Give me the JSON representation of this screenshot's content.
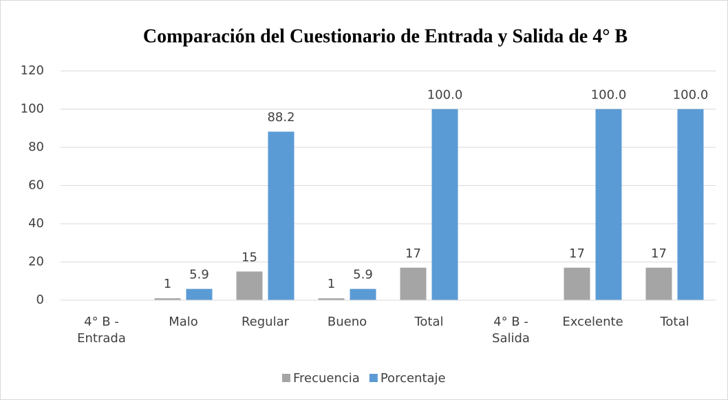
{
  "chart_data": {
    "type": "bar",
    "title": "Comparación del Cuestionario de Entrada y Salida de 4° B",
    "categories": [
      "4° B - Entrada",
      "Malo",
      "Regular",
      "Bueno",
      "Total",
      "4° B - Salida",
      "Excelente",
      "Total"
    ],
    "series": [
      {
        "name": "Frecuencia",
        "color": "#a5a5a5",
        "values": [
          null,
          1,
          15,
          1,
          17,
          null,
          17,
          17
        ]
      },
      {
        "name": "Porcentaje",
        "color": "#5b9bd5",
        "values": [
          null,
          5.9,
          88.2,
          5.9,
          100,
          null,
          100,
          100
        ],
        "value_labels": [
          null,
          "5.9",
          "88.2",
          "5.9",
          "100.0",
          null,
          "100.0",
          "100.0"
        ]
      }
    ],
    "ylim": [
      0,
      120
    ],
    "yticks": [
      0,
      20,
      40,
      60,
      80,
      100,
      120
    ],
    "grid": true,
    "legend": "bottom"
  }
}
